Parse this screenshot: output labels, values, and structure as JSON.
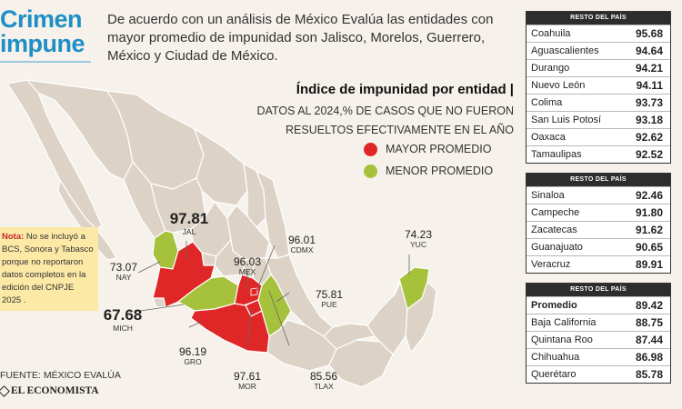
{
  "title": {
    "line1": "Crimen",
    "line2": "impune"
  },
  "intro": "De acuerdo con un análisis de México Evalúa las entidades con mayor promedio de impunidad son Jalisco, Morelos, Guerrero, México y Ciudad de México.",
  "index_title": "Índice de impunidad por entidad |",
  "index_subtitle_1": "Datos al 2024,% de casos que no fueron",
  "index_subtitle_2": "resueltos efectivamente en el año",
  "legend": {
    "high": {
      "label": "MAYOR PROMEDIO",
      "color": "#e02727"
    },
    "low": {
      "label": "MENOR PROMEDIO",
      "color": "#a6c23c"
    }
  },
  "colors": {
    "accent": "#1e8fc6",
    "map_base": "#ddd2c6",
    "map_border": "#ffffff"
  },
  "map_labels": {
    "jal": {
      "value": "97.81",
      "abbr": "JAL"
    },
    "nay": {
      "value": "73.07",
      "abbr": "NAY"
    },
    "mich": {
      "value": "67.68",
      "abbr": "MICH"
    },
    "gro": {
      "value": "96.19",
      "abbr": "GRO"
    },
    "mex": {
      "value": "96.03",
      "abbr": "MEX"
    },
    "cdmx": {
      "value": "96.01",
      "abbr": "CDMX"
    },
    "pue": {
      "value": "75.81",
      "abbr": "PUE"
    },
    "mor": {
      "value": "97.61",
      "abbr": "MOR"
    },
    "tlax": {
      "value": "85.56",
      "abbr": "TLAX"
    },
    "yuc": {
      "value": "74.23",
      "abbr": "YUC"
    }
  },
  "note": {
    "bold": "Nota:",
    "text": " No se incluyó a BCS, Sonora y Tabasco porque no reportaron datos completos en la edición del CNPJE 2025 ."
  },
  "source": "FUENTE: MÉXICO EVALÚA",
  "logo": "EL ECONOMISTA",
  "tables": [
    {
      "header": "RESTO DEL PAÍS",
      "rows": [
        {
          "name": "Coahuila",
          "value": "95.68"
        },
        {
          "name": "Aguascalientes",
          "value": "94.64"
        },
        {
          "name": "Durango",
          "value": "94.21"
        },
        {
          "name": "Nuevo León",
          "value": "94.11"
        },
        {
          "name": "Colima",
          "value": "93.73"
        },
        {
          "name": "San Luis Potosí",
          "value": "93.18"
        },
        {
          "name": "Oaxaca",
          "value": "92.62"
        },
        {
          "name": "Tamaulipas",
          "value": "92.52"
        }
      ]
    },
    {
      "header": "RESTO DEL PAÍS",
      "rows": [
        {
          "name": "Sinaloa",
          "value": "92.46"
        },
        {
          "name": "Campeche",
          "value": "91.80"
        },
        {
          "name": "Zacatecas",
          "value": "91.62"
        },
        {
          "name": "Guanajuato",
          "value": "90.65"
        },
        {
          "name": "Veracruz",
          "value": "89.91"
        }
      ]
    },
    {
      "header": "RESTO DEL PAÍS",
      "rows": [
        {
          "name": "Promedio",
          "value": "89.42",
          "highlight": true
        },
        {
          "name": "Baja California",
          "value": "88.75"
        },
        {
          "name": "Quintana Roo",
          "value": "87.44"
        },
        {
          "name": "Chihuahua",
          "value": "86.98"
        },
        {
          "name": "Querétaro",
          "value": "85.78"
        }
      ]
    }
  ]
}
